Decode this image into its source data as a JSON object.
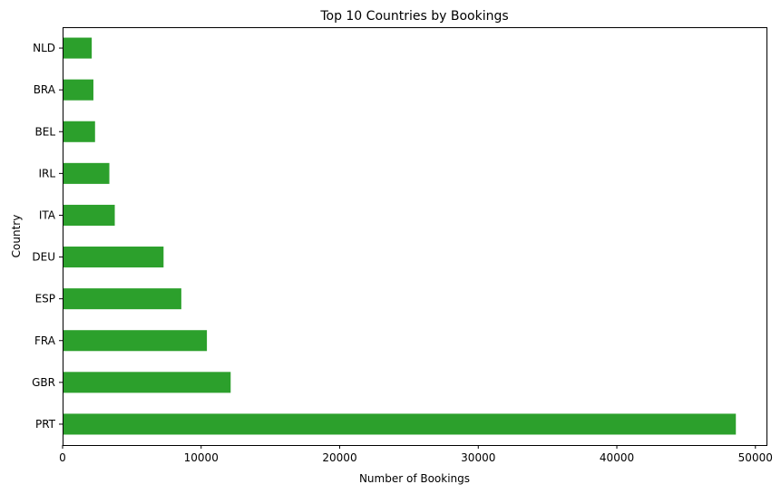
{
  "chart_data": {
    "type": "bar",
    "orientation": "horizontal",
    "title": "Top 10 Countries by Bookings",
    "xlabel": "Number of Bookings",
    "ylabel": "Country",
    "categories": [
      "PRT",
      "GBR",
      "FRA",
      "ESP",
      "DEU",
      "ITA",
      "IRL",
      "BEL",
      "BRA",
      "NLD"
    ],
    "values": [
      48590,
      12129,
      10415,
      8568,
      7287,
      3766,
      3375,
      2342,
      2224,
      2104
    ],
    "xlim": [
      0,
      50800
    ],
    "xticks": [
      0,
      10000,
      20000,
      30000,
      40000,
      50000
    ],
    "grid": false,
    "legend": "none",
    "bar_color": "#2ca02c"
  }
}
